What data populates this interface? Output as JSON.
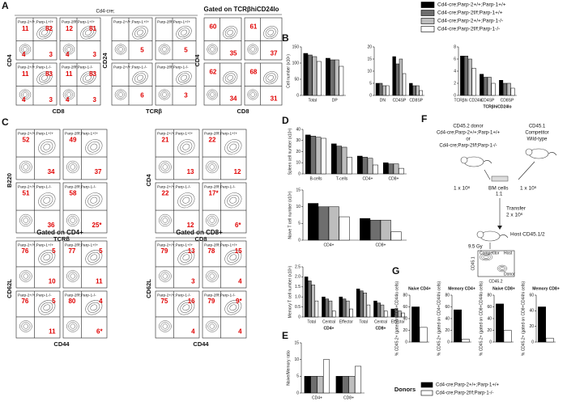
{
  "letters": [
    "A",
    "B",
    "C",
    "D",
    "E",
    "F",
    "G"
  ],
  "genotypes": [
    {
      "name": "Cd4-cre;Parp-2+/+;Parp-1+/+",
      "color": "#000000"
    },
    {
      "name": "Cd4-cre;Parp-2f/f;Parp-1+/+",
      "color": "#6e6e6e"
    },
    {
      "name": "Cd4-cre;Parp-2+/+;Parp-1-/-",
      "color": "#bdbdbd"
    },
    {
      "name": "Cd4-cre;Parp-2f/f;Parp-1-/-",
      "color": "#ffffff"
    }
  ],
  "flow": {
    "header": "Cd4-cre;",
    "groups": [
      {
        "ylabel": "CD4",
        "xlabel": "CD8",
        "plots": [
          {
            "title": "Parp-2+/+;Parp-1+/+",
            "numbers": [
              11,
              82,
              4,
              3
            ]
          },
          {
            "title": "Parp-2f/f;Parp-1+/+",
            "numbers": [
              12,
              81,
              4,
              3
            ]
          },
          {
            "title": "Parp-2+/+;Parp-1-/-",
            "numbers": [
              11,
              83,
              4,
              3
            ]
          },
          {
            "title": "Parp-2f/f;Parp-1-/-",
            "numbers": [
              11,
              83,
              4,
              3
            ]
          }
        ]
      },
      {
        "ylabel": "CD24",
        "xlabel": "TCRβ",
        "plots": [
          {
            "title": "Parp-2+/+;Parp-1+/+",
            "numbers": [
              5
            ]
          },
          {
            "title": "Parp-2f/f;Parp-1+/+",
            "numbers": [
              5
            ]
          },
          {
            "title": "Parp-2+/+;Parp-1-/-",
            "numbers": [
              6
            ]
          },
          {
            "title": "Parp-2f/f;Parp-1-/-",
            "numbers": [
              3
            ]
          }
        ]
      },
      {
        "header": "Gated on TCRβhiCD24lo",
        "ylabel": "CD4",
        "xlabel": "CD8",
        "plots": [
          {
            "title": "",
            "numbers": [
              60,
              35
            ]
          },
          {
            "title": "",
            "numbers": [
              61,
              37
            ]
          },
          {
            "title": "",
            "numbers": [
              62,
              34
            ]
          },
          {
            "title": "",
            "numbers": [
              68,
              31
            ]
          }
        ]
      },
      {
        "ylabel": "B220",
        "xlabel": "TCRβ",
        "plots": [
          {
            "title": "Parp-2+/+;Parp-1+/+",
            "numbers": [
              52,
              34
            ]
          },
          {
            "title": "Parp-2f/f;Parp-1+/+",
            "numbers": [
              49,
              37
            ]
          },
          {
            "title": "Parp-2+/+;Parp-1-/-",
            "numbers": [
              51,
              36
            ]
          },
          {
            "title": "Parp-2f/f;Parp-1-/-",
            "numbers": [
              58,
              "25*"
            ]
          }
        ]
      },
      {
        "ylabel": "CD4",
        "xlabel": "CD8",
        "plots": [
          {
            "title": "Parp-2+/+;Parp-1+/+",
            "numbers": [
              21,
              13
            ]
          },
          {
            "title": "Parp-2f/f;Parp-1+/+",
            "numbers": [
              22,
              12
            ]
          },
          {
            "title": "Parp-2+/+;Parp-1-/-",
            "numbers": [
              22,
              12
            ]
          },
          {
            "title": "Parp-2f/f;Parp-1-/-",
            "numbers": [
              "17*",
              "6*"
            ]
          }
        ]
      },
      {
        "header": "Gated on CD4+",
        "ylabel": "CD62L",
        "xlabel": "CD44",
        "plots": [
          {
            "title": "Parp-2+/+;Parp-1+/+",
            "numbers": [
              76,
              5,
              10
            ]
          },
          {
            "title": "Parp-2f/f;Parp-1+/+",
            "numbers": [
              77,
              5,
              11
            ]
          },
          {
            "title": "Parp-2+/+;Parp-1-/-",
            "numbers": [
              76,
              5,
              11
            ]
          },
          {
            "title": "Parp-2f/f;Parp-1-/-",
            "numbers": [
              80,
              4,
              "6*"
            ]
          }
        ]
      },
      {
        "header": "Gated on CD8+",
        "ylabel": "CD62L",
        "xlabel": "CD44",
        "plots": [
          {
            "title": "Parp-2+/+;Parp-1+/+",
            "numbers": [
              79,
              13,
              3
            ]
          },
          {
            "title": "Parp-2f/f;Parp-1+/+",
            "numbers": [
              78,
              15,
              4
            ]
          },
          {
            "title": "Parp-2+/+;Parp-1-/-",
            "numbers": [
              75,
              16,
              4
            ]
          },
          {
            "title": "Parp-2f/f;Parp-1-/-",
            "numbers": [
              79,
              "9*",
              4
            ]
          }
        ]
      }
    ]
  },
  "charts": [
    {
      "type": "bar",
      "ylabel": "Cell number (x10⁶)",
      "categories": [
        "Total",
        "DP"
      ],
      "ylim": [
        0,
        150
      ],
      "yticks": [
        0,
        50,
        100,
        150
      ],
      "series": [
        {
          "color": "#000000",
          "values": [
            130,
            115
          ]
        },
        {
          "color": "#6e6e6e",
          "values": [
            125,
            110
          ]
        },
        {
          "color": "#bdbdbd",
          "values": [
            120,
            110
          ]
        },
        {
          "color": "#ffffff",
          "values": [
            105,
            90
          ]
        }
      ]
    },
    {
      "type": "bar",
      "categories": [
        "DN",
        "CD4SP",
        "CD8SP"
      ],
      "ylim": [
        0,
        20
      ],
      "yticks": [
        0,
        5,
        10,
        15,
        20
      ],
      "series": [
        {
          "color": "#000000",
          "values": [
            5,
            16,
            5
          ]
        },
        {
          "color": "#6e6e6e",
          "values": [
            5,
            13,
            4
          ]
        },
        {
          "color": "#bdbdbd",
          "values": [
            4,
            15,
            4
          ]
        },
        {
          "color": "#ffffff",
          "values": [
            4,
            9,
            2
          ]
        }
      ]
    },
    {
      "type": "bar",
      "categories": [
        "TCRβhi CD24lo",
        "CD4SP",
        "CD8SP"
      ],
      "group_labels": [
        "TCRβhiCD24lo"
      ],
      "ylim": [
        0,
        8
      ],
      "yticks": [
        0,
        2,
        4,
        6,
        8
      ],
      "series": [
        {
          "color": "#000000",
          "values": [
            6.5,
            3.5,
            2.5
          ]
        },
        {
          "color": "#6e6e6e",
          "values": [
            6.5,
            3,
            2
          ]
        },
        {
          "color": "#bdbdbd",
          "values": [
            6,
            3,
            2
          ]
        },
        {
          "color": "#ffffff",
          "values": [
            4.5,
            2,
            1.2
          ]
        }
      ]
    },
    {
      "type": "bar",
      "ylabel": "Spleen cell number (x10⁶)",
      "categories": [
        "B-cells",
        "T-cells",
        "CD4+",
        "CD8+"
      ],
      "ylim": [
        0,
        40
      ],
      "yticks": [
        0,
        10,
        20,
        30,
        40
      ],
      "series": [
        {
          "color": "#000000",
          "values": [
            35,
            27,
            16,
            10
          ]
        },
        {
          "color": "#6e6e6e",
          "values": [
            34,
            25,
            15,
            9
          ]
        },
        {
          "color": "#bdbdbd",
          "values": [
            33,
            24,
            14,
            9
          ]
        },
        {
          "color": "#ffffff",
          "values": [
            32,
            15,
            8,
            5
          ]
        }
      ]
    },
    {
      "type": "bar",
      "ylabel": "Naive T cell number (x10⁶)",
      "categories": [
        "CD4+",
        "CD8+"
      ],
      "ylim": [
        0,
        15
      ],
      "yticks": [
        0,
        5,
        10,
        15
      ],
      "series": [
        {
          "color": "#000000",
          "values": [
            11,
            6.5
          ]
        },
        {
          "color": "#6e6e6e",
          "values": [
            10,
            6
          ]
        },
        {
          "color": "#bdbdbd",
          "values": [
            10,
            6
          ]
        },
        {
          "color": "#ffffff",
          "values": [
            7,
            2.5
          ]
        }
      ]
    },
    {
      "type": "bar",
      "ylabel": "Memory T cell number (x10⁶)",
      "categories": [
        "Total",
        "Central",
        "Effector",
        "Total",
        "Central",
        "Effector"
      ],
      "group_labels": [
        "CD4+",
        "CD8+"
      ],
      "ylim": [
        0,
        2.5
      ],
      "yticks": [
        0,
        0.5,
        {
          "value": 1,
          "label": "1.0"
        },
        1.5,
        {
          "value": 2,
          "label": "2.0"
        },
        2.5
      ],
      "series": [
        {
          "color": "#000000",
          "values": [
            2.0,
            1.0,
            1.0,
            1.4,
            0.8,
            0.4
          ]
        },
        {
          "color": "#6e6e6e",
          "values": [
            1.8,
            0.9,
            0.9,
            1.3,
            0.7,
            0.4
          ]
        },
        {
          "color": "#bdbdbd",
          "values": [
            1.6,
            0.8,
            0.8,
            1.2,
            0.6,
            0.3
          ]
        },
        {
          "color": "#ffffff",
          "values": [
            0.8,
            0.3,
            0.4,
            0.6,
            0.3,
            0.2
          ]
        }
      ]
    },
    {
      "type": "bar",
      "ylabel": "Naive/Memory ratio",
      "categories": [
        "CD4+",
        "CD8+"
      ],
      "ylim": [
        0,
        15
      ],
      "yticks": [
        0,
        5,
        10,
        15
      ],
      "series": [
        {
          "color": "#000000",
          "values": [
            5,
            5
          ]
        },
        {
          "color": "#6e6e6e",
          "values": [
            5,
            5
          ]
        },
        {
          "color": "#bdbdbd",
          "values": [
            5,
            5
          ]
        },
        {
          "color": "#ffffff",
          "values": [
            10,
            8
          ]
        }
      ]
    },
    {
      "type": "bar",
      "title": "Naive CD4+",
      "ylabel": "% CD45.2+ (gated on CD4+CD44lo cells)",
      "categories": [
        null
      ],
      "ylim": [
        0,
        80
      ],
      "yticks": [
        0,
        20,
        40,
        60,
        80
      ],
      "series": [
        {
          "color": "#000000",
          "values": [
            60
          ]
        },
        {
          "color": "#ffffff",
          "values": [
            25
          ]
        }
      ]
    },
    {
      "type": "bar",
      "title": "Memory CD4+",
      "ylabel": "% CD45.2+ (gated on CD4+CD44hi cells)",
      "categories": [
        null
      ],
      "ylim": [
        0,
        80
      ],
      "yticks": [
        0,
        20,
        40,
        60,
        80
      ],
      "series": [
        {
          "color": "#000000",
          "values": [
            55
          ]
        },
        {
          "color": "#ffffff",
          "values": [
            5
          ]
        }
      ]
    },
    {
      "type": "bar",
      "title": "Naive CD8+",
      "ylabel": "% CD45.2+ (gated on CD8+CD44lo cells)",
      "categories": [
        null
      ],
      "ylim": [
        0,
        80
      ],
      "yticks": [
        0,
        20,
        40,
        60,
        80
      ],
      "series": [
        {
          "color": "#000000",
          "values": [
            65
          ]
        },
        {
          "color": "#ffffff",
          "values": [
            20
          ]
        }
      ]
    },
    {
      "type": "bar",
      "title": "Memory CD8+",
      "ylabel": "% CD45.2+ (gated on CD8+CD44hi cells)",
      "categories": [
        null
      ],
      "ylim": [
        0,
        60
      ],
      "yticks": [
        0,
        20,
        40,
        60
      ],
      "series": [
        {
          "color": "#000000",
          "values": [
            45
          ]
        },
        {
          "color": "#ffffff",
          "values": [
            5
          ]
        }
      ]
    }
  ],
  "diagram": {
    "donor_title": "CD45.2 donor",
    "donor_a": "Cd4-cre;Parp-2+/+;Parp-1+/+",
    "or": "or",
    "donor_b": "Cd4-cre;Parp-2f/f;Parp-1-/-",
    "comp_title": "CD45.1",
    "comp_label": "Competitor",
    "comp_type": "Wild-type",
    "dose_left": "1 x 10⁶",
    "bm": "BM cells",
    "ratio": "1:1",
    "dose_right": "1 x 10⁶",
    "transfer": "Transfer",
    "transfer_dose": "2 x 10⁶",
    "host": "Host CD45.1/2",
    "dose": "9.5 Gy",
    "gate_comp": "Competitor",
    "gate_host": "Host",
    "gate_donor": "Donor",
    "yaxis": "CD45.1",
    "xaxis": "CD45.2"
  },
  "donors": {
    "title": "Donors",
    "entries": [
      {
        "name": "Cd4-cre;Parp-2+/+;Parp-1+/+",
        "color": "#000000"
      },
      {
        "name": "Cd4-cre;Parp-2f/f;Parp-1-/-",
        "color": "#ffffff"
      }
    ]
  }
}
